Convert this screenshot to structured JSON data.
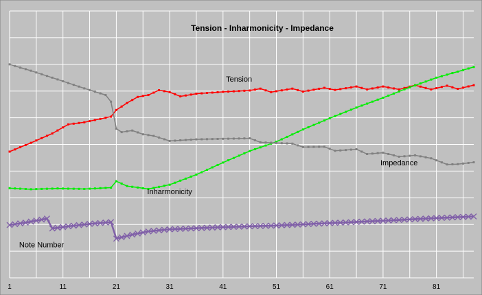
{
  "colors": {
    "background": "#c0c0c0",
    "grid": "#ffffff",
    "tension": "#ff0000",
    "inharmonicity": "#00ee00",
    "impedance": "#808080",
    "note_number": "#8060a8"
  },
  "chart_data": {
    "type": "line",
    "title": "Tension - Inharmonicity - Impedance",
    "xlabel": "",
    "ylabel": "",
    "grid": true,
    "legend": "inline labels",
    "x_ticks": [
      "1",
      "11",
      "21",
      "31",
      "41",
      "51",
      "61",
      "71",
      "81"
    ],
    "x_range": [
      1,
      88
    ],
    "y_range": [
      0,
      100
    ],
    "y_axis_labels": "none",
    "series": [
      {
        "name": "Tension",
        "key": "tension",
        "values": [
          [
            1,
            47.3
          ],
          [
            5,
            50.6
          ],
          [
            9,
            54.1
          ],
          [
            12,
            57.5
          ],
          [
            15,
            58.3
          ],
          [
            20,
            60.4
          ],
          [
            21,
            62.9
          ],
          [
            23,
            65.5
          ],
          [
            25,
            67.8
          ],
          [
            27,
            68.5
          ],
          [
            29,
            70.3
          ],
          [
            31,
            69.6
          ],
          [
            33,
            68.0
          ],
          [
            36,
            69.0
          ],
          [
            41,
            69.7
          ],
          [
            46,
            70.2
          ],
          [
            48,
            70.9
          ],
          [
            50,
            69.6
          ],
          [
            54,
            70.9
          ],
          [
            56,
            69.8
          ],
          [
            60,
            71.2
          ],
          [
            62,
            70.4
          ],
          [
            66,
            71.7
          ],
          [
            68,
            70.6
          ],
          [
            71,
            71.7
          ],
          [
            74,
            70.6
          ],
          [
            77,
            72.2
          ],
          [
            80,
            70.6
          ],
          [
            83,
            72.0
          ],
          [
            85,
            70.8
          ],
          [
            88,
            72.2
          ]
        ]
      },
      {
        "name": "Inharmonicity",
        "key": "inharmonicity",
        "values": [
          [
            1,
            33.6
          ],
          [
            5,
            33.2
          ],
          [
            10,
            33.5
          ],
          [
            15,
            33.3
          ],
          [
            20,
            33.8
          ],
          [
            21,
            36.2
          ],
          [
            23,
            34.4
          ],
          [
            27,
            33.3
          ],
          [
            31,
            34.9
          ],
          [
            36,
            38.7
          ],
          [
            41,
            43.2
          ],
          [
            46,
            47.5
          ],
          [
            51,
            51.0
          ],
          [
            56,
            55.6
          ],
          [
            61,
            59.8
          ],
          [
            66,
            63.8
          ],
          [
            71,
            67.5
          ],
          [
            76,
            71.4
          ],
          [
            81,
            75.0
          ],
          [
            88,
            79.0
          ]
        ]
      },
      {
        "name": "Impedance",
        "key": "impedance",
        "values": [
          [
            1,
            80.0
          ],
          [
            5,
            77.6
          ],
          [
            9,
            75.0
          ],
          [
            12,
            73.0
          ],
          [
            15,
            71.0
          ],
          [
            19,
            68.5
          ],
          [
            20,
            66.0
          ],
          [
            21,
            55.9
          ],
          [
            22,
            54.6
          ],
          [
            24,
            55.2
          ],
          [
            26,
            53.8
          ],
          [
            28,
            53.2
          ],
          [
            31,
            51.3
          ],
          [
            36,
            51.9
          ],
          [
            41,
            52.1
          ],
          [
            46,
            52.3
          ],
          [
            48,
            50.8
          ],
          [
            54,
            50.3
          ],
          [
            56,
            49.0
          ],
          [
            60,
            49.1
          ],
          [
            62,
            47.6
          ],
          [
            66,
            48.2
          ],
          [
            68,
            46.4
          ],
          [
            71,
            46.9
          ],
          [
            74,
            45.4
          ],
          [
            77,
            45.9
          ],
          [
            80,
            44.8
          ],
          [
            83,
            42.5
          ],
          [
            85,
            42.6
          ],
          [
            88,
            43.3
          ]
        ]
      },
      {
        "name": "Note Number",
        "key": "note_number",
        "values": [
          [
            1,
            19.8
          ],
          [
            4,
            20.7
          ],
          [
            8,
            22.2
          ],
          [
            9,
            18.5
          ],
          [
            12,
            19.3
          ],
          [
            16,
            20.2
          ],
          [
            20,
            20.9
          ],
          [
            21,
            14.7
          ],
          [
            24,
            16.2
          ],
          [
            27,
            17.4
          ],
          [
            31,
            18.2
          ],
          [
            41,
            19.0
          ],
          [
            51,
            19.6
          ],
          [
            61,
            20.5
          ],
          [
            71,
            21.4
          ],
          [
            81,
            22.4
          ],
          [
            88,
            23.0
          ]
        ]
      }
    ],
    "annotations": [
      {
        "text": "Tension",
        "key": "tension",
        "x": 44,
        "y": 73.5
      },
      {
        "text": "Inharmonicity",
        "key": "inharmonicity",
        "x": 31,
        "y": 31.4
      },
      {
        "text": "Impedance",
        "key": "impedance",
        "x": 74,
        "y": 42.2
      },
      {
        "text": "Note Number",
        "key": "note_number",
        "x": 7,
        "y": 11.4
      }
    ]
  }
}
